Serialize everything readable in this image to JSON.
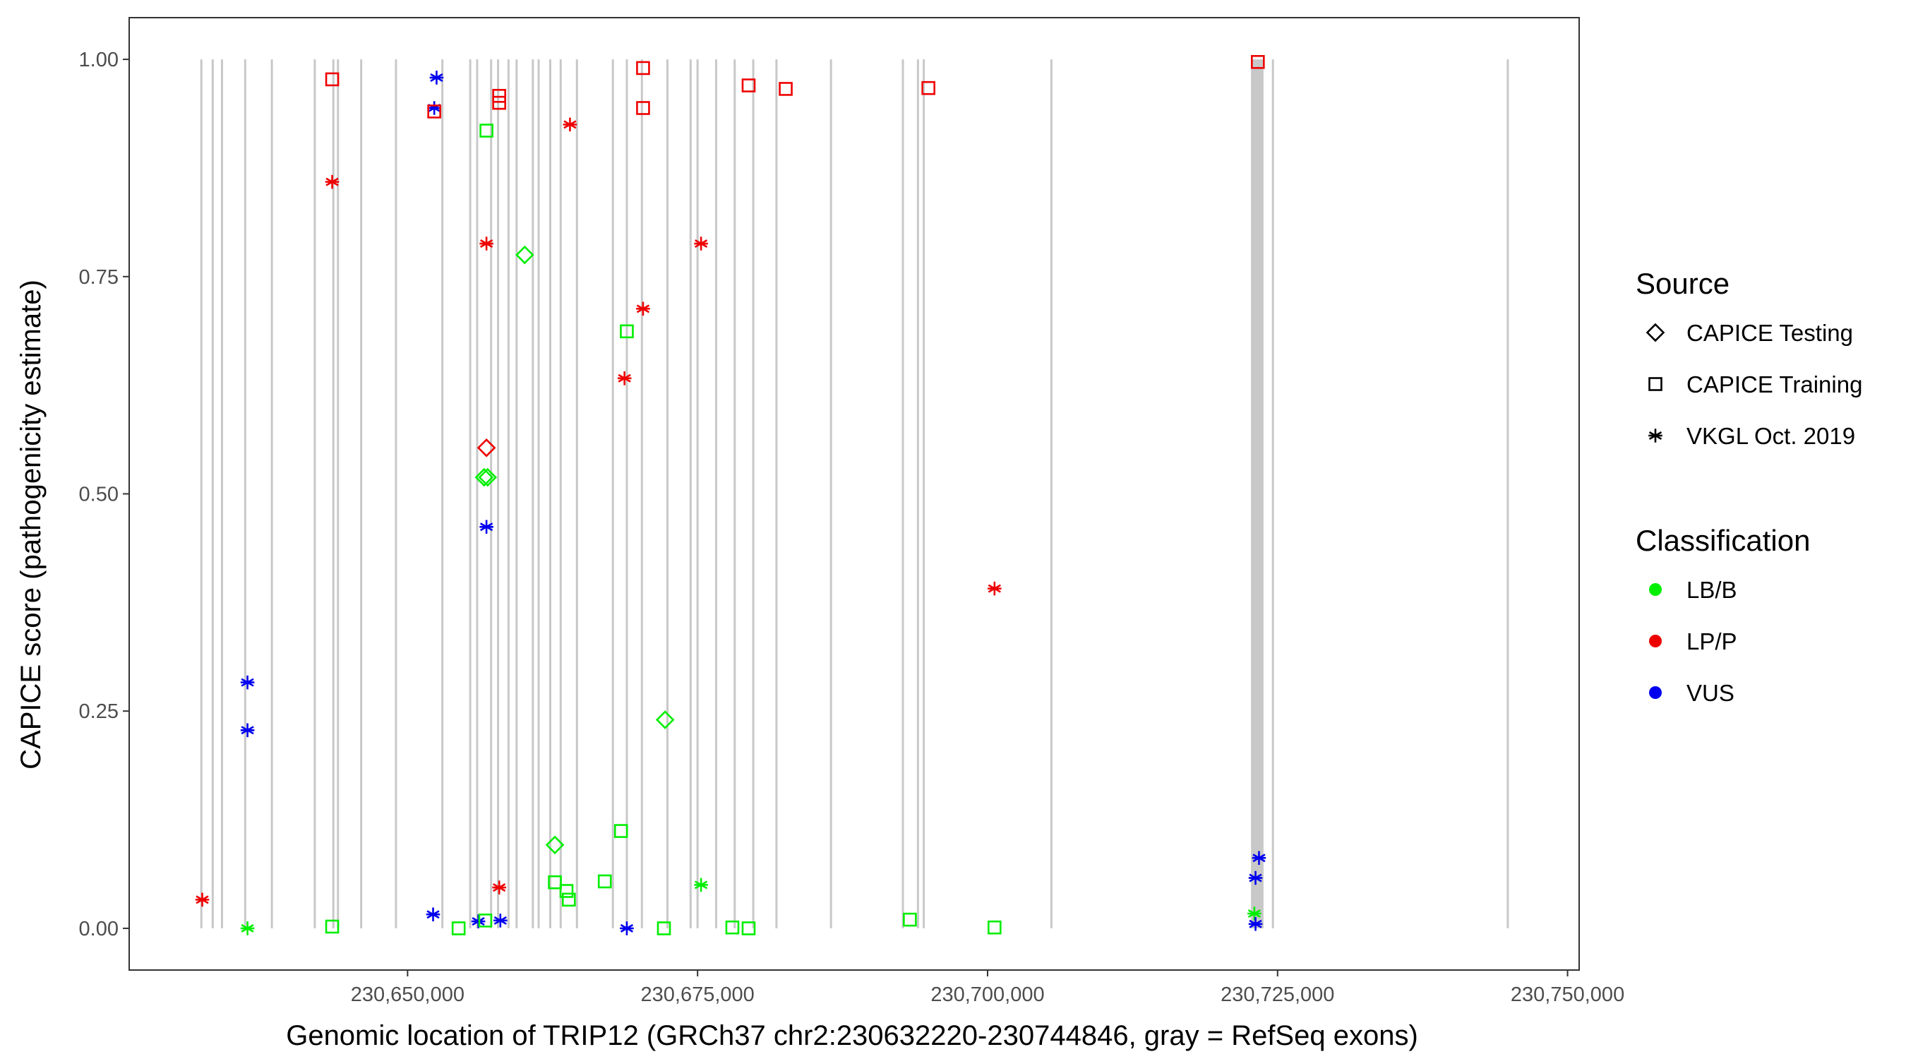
{
  "chart_data": {
    "type": "scatter",
    "xlabel": "Genomic location of TRIP12 (GRCh37 chr2:230632220-230744846, gray = RefSeq exons)",
    "ylabel": "CAPICE score (pathogenicity estimate)",
    "xlim": [
      230626000,
      230751000
    ],
    "ylim": [
      -0.048,
      1.048
    ],
    "x_ticks": [
      230650000,
      230675000,
      230700000,
      230725000,
      230750000
    ],
    "x_tick_labels": [
      "230,650,000",
      "230,675,000",
      "230,700,000",
      "230,725,000",
      "230,750,000"
    ],
    "y_ticks": [
      0,
      0.25,
      0.5,
      0.75,
      1.0
    ],
    "y_tick_labels": [
      "0.00",
      "0.25",
      "0.50",
      "0.75",
      "1.00"
    ],
    "grid": false,
    "exon_color": "#c8c8c8",
    "exon_positions": [
      230632220,
      230633200,
      230634000,
      230636000,
      230638300,
      230642000,
      230643600,
      230644000,
      230646000,
      230649000,
      230653000,
      230655400,
      230656000,
      230657200,
      230657800,
      230658700,
      230659400,
      230660800,
      230661300,
      230662300,
      230663200,
      230664600,
      230667700,
      230668900,
      230670200,
      230672400,
      230674400,
      230675000,
      230676600,
      230678200,
      230679800,
      230681800,
      230686500,
      230692700,
      230694000,
      230694500,
      230705500,
      230722800,
      230722950,
      230723100,
      230723250,
      230723400,
      230723550,
      230723700,
      230724600,
      230744846
    ],
    "legend": {
      "position": "right",
      "source_title": "Source",
      "source_entries": [
        {
          "label": "CAPICE Testing",
          "shape": "diamond"
        },
        {
          "label": "CAPICE Training",
          "shape": "square"
        },
        {
          "label": "VKGL Oct. 2019",
          "shape": "asterisk"
        }
      ],
      "classification_title": "Classification",
      "classification_entries": [
        {
          "label": "LB/B",
          "color": "#00ee00"
        },
        {
          "label": "LP/P",
          "color": "#ee0000"
        },
        {
          "label": "VUS",
          "color": "#0000ee"
        }
      ]
    },
    "points": [
      {
        "x": 230632300,
        "y": 0.033,
        "source": "VKGL Oct. 2019",
        "classification": "LP/P"
      },
      {
        "x": 230636200,
        "y": 0.0,
        "source": "VKGL Oct. 2019",
        "classification": "LB/B"
      },
      {
        "x": 230636200,
        "y": 0.228,
        "source": "VKGL Oct. 2019",
        "classification": "VUS"
      },
      {
        "x": 230636200,
        "y": 0.283,
        "source": "VKGL Oct. 2019",
        "classification": "VUS"
      },
      {
        "x": 230643500,
        "y": 0.977,
        "source": "CAPICE Training",
        "classification": "LP/P"
      },
      {
        "x": 230643500,
        "y": 0.859,
        "source": "VKGL Oct. 2019",
        "classification": "LP/P"
      },
      {
        "x": 230643500,
        "y": 0.002,
        "source": "CAPICE Training",
        "classification": "LB/B"
      },
      {
        "x": 230652500,
        "y": 0.979,
        "source": "VKGL Oct. 2019",
        "classification": "VUS"
      },
      {
        "x": 230652300,
        "y": 0.944,
        "source": "VKGL Oct. 2019",
        "classification": "VUS"
      },
      {
        "x": 230652300,
        "y": 0.94,
        "source": "CAPICE Training",
        "classification": "LP/P"
      },
      {
        "x": 230652200,
        "y": 0.016,
        "source": "VKGL Oct. 2019",
        "classification": "VUS"
      },
      {
        "x": 230654400,
        "y": 0.0,
        "source": "CAPICE Training",
        "classification": "LB/B"
      },
      {
        "x": 230656100,
        "y": 0.008,
        "source": "VKGL Oct. 2019",
        "classification": "VUS"
      },
      {
        "x": 230656800,
        "y": 0.918,
        "source": "CAPICE Training",
        "classification": "LB/B"
      },
      {
        "x": 230656800,
        "y": 0.788,
        "source": "VKGL Oct. 2019",
        "classification": "LP/P"
      },
      {
        "x": 230656800,
        "y": 0.553,
        "source": "CAPICE Testing",
        "classification": "LP/P"
      },
      {
        "x": 230656600,
        "y": 0.519,
        "source": "CAPICE Testing",
        "classification": "LB/B"
      },
      {
        "x": 230656900,
        "y": 0.519,
        "source": "CAPICE Testing",
        "classification": "LB/B"
      },
      {
        "x": 230656800,
        "y": 0.462,
        "source": "VKGL Oct. 2019",
        "classification": "VUS"
      },
      {
        "x": 230656700,
        "y": 0.009,
        "source": "CAPICE Training",
        "classification": "LB/B"
      },
      {
        "x": 230657900,
        "y": 0.958,
        "source": "CAPICE Training",
        "classification": "LP/P"
      },
      {
        "x": 230657900,
        "y": 0.95,
        "source": "CAPICE Training",
        "classification": "LP/P"
      },
      {
        "x": 230657900,
        "y": 0.047,
        "source": "VKGL Oct. 2019",
        "classification": "LP/P"
      },
      {
        "x": 230658000,
        "y": 0.009,
        "source": "VKGL Oct. 2019",
        "classification": "VUS"
      },
      {
        "x": 230660100,
        "y": 0.775,
        "source": "CAPICE Testing",
        "classification": "LB/B"
      },
      {
        "x": 230662700,
        "y": 0.096,
        "source": "CAPICE Testing",
        "classification": "LB/B"
      },
      {
        "x": 230662700,
        "y": 0.053,
        "source": "CAPICE Training",
        "classification": "LB/B"
      },
      {
        "x": 230663700,
        "y": 0.043,
        "source": "CAPICE Training",
        "classification": "LB/B"
      },
      {
        "x": 230663900,
        "y": 0.033,
        "source": "CAPICE Training",
        "classification": "LB/B"
      },
      {
        "x": 230664000,
        "y": 0.925,
        "source": "VKGL Oct. 2019",
        "classification": "LP/P"
      },
      {
        "x": 230667000,
        "y": 0.054,
        "source": "CAPICE Training",
        "classification": "LB/B"
      },
      {
        "x": 230668400,
        "y": 0.112,
        "source": "CAPICE Training",
        "classification": "LB/B"
      },
      {
        "x": 230668700,
        "y": 0.633,
        "source": "VKGL Oct. 2019",
        "classification": "LP/P"
      },
      {
        "x": 230668900,
        "y": 0.687,
        "source": "CAPICE Training",
        "classification": "LB/B"
      },
      {
        "x": 230668900,
        "y": 0.0,
        "source": "VKGL Oct. 2019",
        "classification": "VUS"
      },
      {
        "x": 230670300,
        "y": 0.99,
        "source": "CAPICE Training",
        "classification": "LP/P"
      },
      {
        "x": 230670300,
        "y": 0.944,
        "source": "CAPICE Training",
        "classification": "LP/P"
      },
      {
        "x": 230670300,
        "y": 0.713,
        "source": "VKGL Oct. 2019",
        "classification": "LP/P"
      },
      {
        "x": 230672200,
        "y": 0.24,
        "source": "CAPICE Testing",
        "classification": "LB/B"
      },
      {
        "x": 230672100,
        "y": 0.0,
        "source": "CAPICE Training",
        "classification": "LB/B"
      },
      {
        "x": 230675300,
        "y": 0.788,
        "source": "VKGL Oct. 2019",
        "classification": "LP/P"
      },
      {
        "x": 230675300,
        "y": 0.05,
        "source": "VKGL Oct. 2019",
        "classification": "LB/B"
      },
      {
        "x": 230678000,
        "y": 0.001,
        "source": "CAPICE Training",
        "classification": "LB/B"
      },
      {
        "x": 230679400,
        "y": 0.97,
        "source": "CAPICE Training",
        "classification": "LP/P"
      },
      {
        "x": 230679400,
        "y": 0.0,
        "source": "CAPICE Training",
        "classification": "LB/B"
      },
      {
        "x": 230682600,
        "y": 0.966,
        "source": "CAPICE Training",
        "classification": "LP/P"
      },
      {
        "x": 230693300,
        "y": 0.01,
        "source": "CAPICE Training",
        "classification": "LB/B"
      },
      {
        "x": 230694900,
        "y": 0.967,
        "source": "CAPICE Training",
        "classification": "LP/P"
      },
      {
        "x": 230700600,
        "y": 0.391,
        "source": "VKGL Oct. 2019",
        "classification": "LP/P"
      },
      {
        "x": 230700600,
        "y": 0.001,
        "source": "CAPICE Training",
        "classification": "LB/B"
      },
      {
        "x": 230723300,
        "y": 0.997,
        "source": "CAPICE Training",
        "classification": "LP/P"
      },
      {
        "x": 230723400,
        "y": 0.081,
        "source": "VKGL Oct. 2019",
        "classification": "VUS"
      },
      {
        "x": 230723100,
        "y": 0.058,
        "source": "VKGL Oct. 2019",
        "classification": "VUS"
      },
      {
        "x": 230723000,
        "y": 0.017,
        "source": "VKGL Oct. 2019",
        "classification": "LB/B"
      },
      {
        "x": 230723100,
        "y": 0.005,
        "source": "VKGL Oct. 2019",
        "classification": "VUS"
      }
    ]
  }
}
